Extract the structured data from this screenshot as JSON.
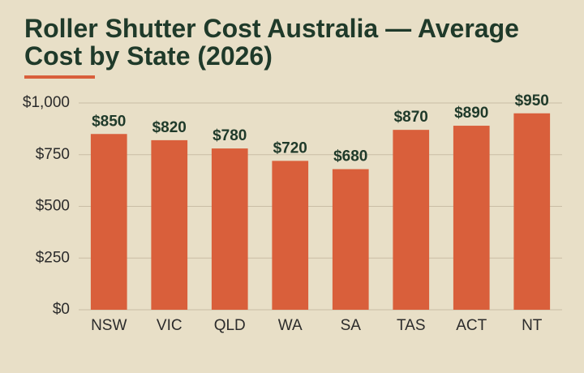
{
  "chart_data": {
    "type": "bar",
    "title": "Roller Shutter Cost Australia — Average Cost by State (2026)",
    "categories": [
      "NSW",
      "VIC",
      "QLD",
      "WA",
      "SA",
      "TAS",
      "ACT",
      "NT"
    ],
    "values": [
      850,
      820,
      780,
      720,
      680,
      870,
      890,
      950
    ],
    "value_labels": [
      "$850",
      "$820",
      "$780",
      "$720",
      "$680",
      "$870",
      "$890",
      "$950"
    ],
    "color": "#d95f3b",
    "ylim": [
      0,
      1000
    ],
    "yticks": [
      {
        "value": 0,
        "label": "$0"
      },
      {
        "value": 250,
        "label": "$250"
      },
      {
        "value": 500,
        "label": "$500"
      },
      {
        "value": 750,
        "label": "$750"
      },
      {
        "value": 1000,
        "label": "$1,000"
      }
    ],
    "grid": true
  }
}
